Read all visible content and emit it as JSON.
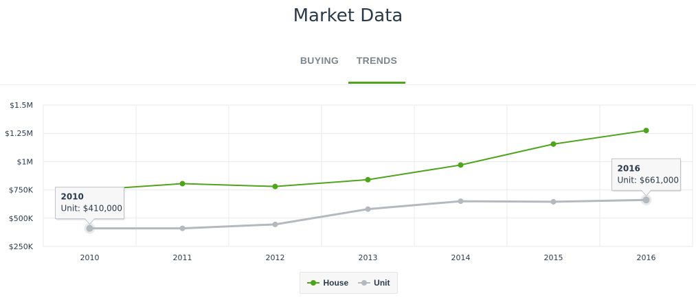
{
  "title": "Market Data",
  "tabs": [
    {
      "label": "BUYING",
      "active": false
    },
    {
      "label": "TRENDS",
      "active": true
    }
  ],
  "colors": {
    "accent": "#4ea41a",
    "house": "#4ea41a",
    "unit": "#b4b8bf",
    "grid": "#e9e9e9",
    "axis_text": "#2b3a4a"
  },
  "chart_data": {
    "type": "line",
    "categories": [
      "2010",
      "2011",
      "2012",
      "2013",
      "2014",
      "2015",
      "2016"
    ],
    "series": [
      {
        "name": "House",
        "values": [
          750000,
          805000,
          780000,
          840000,
          970000,
          1155000,
          1275000
        ]
      },
      {
        "name": "Unit",
        "values": [
          410000,
          410000,
          445000,
          580000,
          650000,
          645000,
          661000
        ]
      }
    ],
    "ylim": [
      250000,
      1500000
    ],
    "yticks": [
      250000,
      500000,
      750000,
      1000000,
      1250000,
      1500000
    ],
    "ytick_labels": [
      "$250K",
      "$500K",
      "$750K",
      "$1M",
      "$1.25M",
      "$1.5M"
    ],
    "grid": true,
    "legend_position": "bottom-center",
    "tooltips": [
      {
        "series": "Unit",
        "category": "2010",
        "title": "2010",
        "text": "Unit: $410,000"
      },
      {
        "series": "Unit",
        "category": "2016",
        "title": "2016",
        "text": "Unit: $661,000"
      }
    ]
  }
}
